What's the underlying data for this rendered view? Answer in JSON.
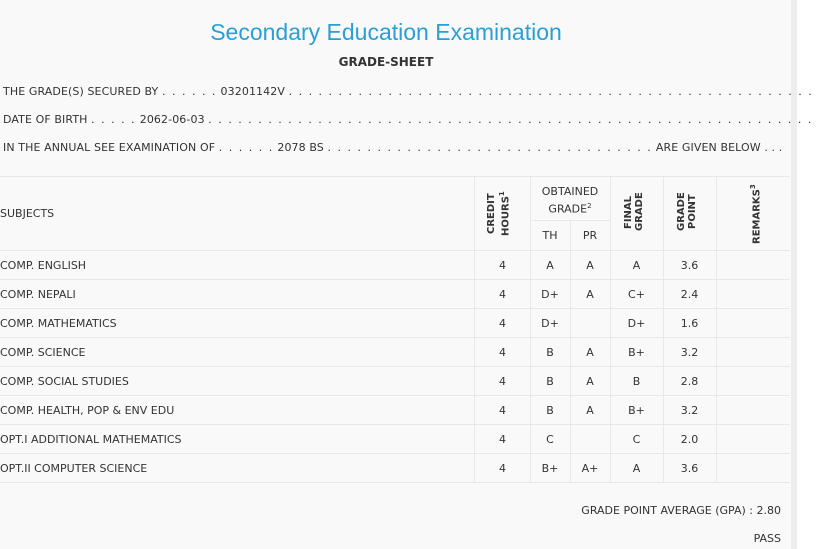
{
  "header": {
    "title": "Secondary Education Examination",
    "subtitle": "GRADE-SHEET"
  },
  "info": {
    "secured_by_label": "THE GRADE(S) SECURED BY",
    "symbol_no": "03201142V",
    "dob_label": "DATE OF BIRTH",
    "dob": "2062-06-03",
    "exam_label": "IN THE ANNUAL SEE EXAMINATION OF",
    "exam_year": "2078 BS",
    "given_below": "ARE GIVEN BELOW . . ."
  },
  "table": {
    "headers": {
      "subjects": "SUBJECTS",
      "credit_hours": "CREDIT HOURS",
      "credit_sup": "1",
      "obtained_grade": "OBTAINED GRADE",
      "obtained_sup": "2",
      "th": "TH",
      "pr": "PR",
      "final_grade": "FINAL GRADE",
      "grade_point": "GRADE POINT",
      "remarks": "REMARKS",
      "remarks_sup": "3"
    },
    "rows": [
      {
        "subject": "COMP. ENGLISH",
        "credit": "4",
        "th": "A",
        "pr": "A",
        "final": "A",
        "gp": "3.6"
      },
      {
        "subject": "COMP. NEPALI",
        "credit": "4",
        "th": "D+",
        "pr": "A",
        "final": "C+",
        "gp": "2.4"
      },
      {
        "subject": "COMP. MATHEMATICS",
        "credit": "4",
        "th": "D+",
        "pr": "",
        "final": "D+",
        "gp": "1.6"
      },
      {
        "subject": "COMP. SCIENCE",
        "credit": "4",
        "th": "B",
        "pr": "A",
        "final": "B+",
        "gp": "3.2"
      },
      {
        "subject": "COMP. SOCIAL STUDIES",
        "credit": "4",
        "th": "B",
        "pr": "A",
        "final": "B",
        "gp": "2.8"
      },
      {
        "subject": "COMP. HEALTH, POP & ENV EDU",
        "credit": "4",
        "th": "B",
        "pr": "A",
        "final": "B+",
        "gp": "3.2"
      },
      {
        "subject": "OPT.I ADDITIONAL MATHEMATICS",
        "credit": "4",
        "th": "C",
        "pr": "",
        "final": "C",
        "gp": "2.0"
      },
      {
        "subject": "OPT.II COMPUTER SCIENCE",
        "credit": "4",
        "th": "B+",
        "pr": "A+",
        "final": "A",
        "gp": "3.6"
      }
    ]
  },
  "summary": {
    "gpa_label": "GRADE POINT AVERAGE (GPA) :",
    "gpa": "2.80",
    "result": "PASS"
  }
}
